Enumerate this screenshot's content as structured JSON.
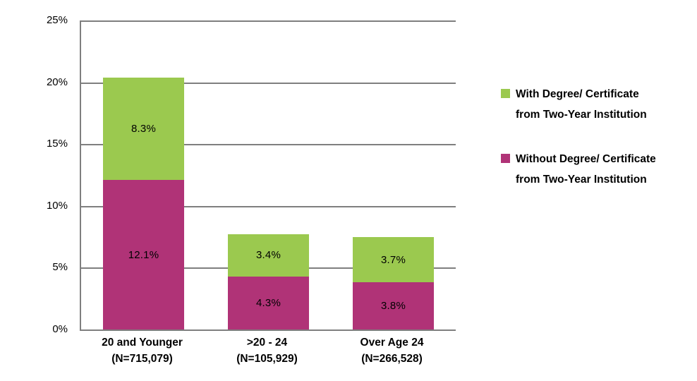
{
  "chart_data": {
    "type": "bar",
    "stacked": true,
    "title": "",
    "xlabel": "",
    "ylabel": "",
    "ylim": [
      0,
      25
    ],
    "ytick_step": 5,
    "yticks": [
      "0%",
      "5%",
      "10%",
      "15%",
      "20%",
      "25%"
    ],
    "grid": true,
    "legend_position": "right",
    "categories": [
      {
        "label": "20 and Younger",
        "n": "(N=715,079)"
      },
      {
        "label": ">20 - 24",
        "n": "(N=105,929)"
      },
      {
        "label": "Over Age 24",
        "n": "(N=266,528)"
      }
    ],
    "series": [
      {
        "name": "Without Degree/ Certificate from Two-Year Institution",
        "color": "#B03377",
        "values": [
          12.1,
          4.3,
          3.8
        ],
        "labels": [
          "12.1%",
          "4.3%",
          "3.8%"
        ]
      },
      {
        "name": "With Degree/ Certificate from Two-Year Institution",
        "color": "#9BC94F",
        "values": [
          8.3,
          3.4,
          3.7
        ],
        "labels": [
          "8.3%",
          "3.4%",
          "3.7%"
        ]
      }
    ],
    "legend": [
      {
        "color": "#9BC94F",
        "lines": [
          "With Degree/ Certificate",
          "from Two-Year Institution"
        ]
      },
      {
        "color": "#B03377",
        "lines": [
          "Without Degree/ Certificate",
          "from Two-Year Institution"
        ]
      }
    ]
  },
  "colors": {
    "gridline": "#7f7f7f",
    "axis": "#7f7f7f",
    "background": "#ffffff",
    "label_text": "#000000"
  }
}
